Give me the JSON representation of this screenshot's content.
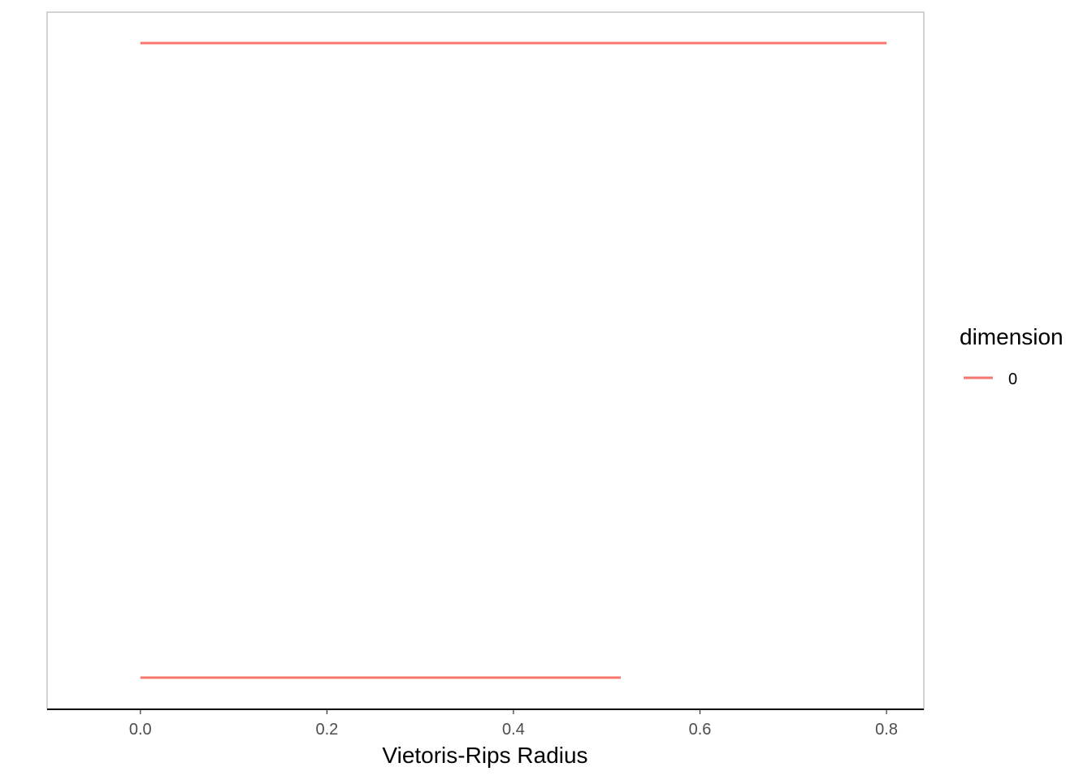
{
  "chart_data": {
    "type": "barcode",
    "title": "",
    "xlabel": "Vietoris-Rips Radius",
    "ylabel": "",
    "xlim": [
      -0.1,
      0.84
    ],
    "x_ticks": [
      0.0,
      0.2,
      0.4,
      0.6,
      0.8
    ],
    "x_tick_labels": [
      "0.0",
      "0.2",
      "0.4",
      "0.6",
      "0.8"
    ],
    "grid": false,
    "legend": {
      "title": "dimension",
      "position": "right",
      "entries": [
        {
          "label": "0",
          "color": "#F8766D"
        }
      ]
    },
    "series": [
      {
        "name": "0",
        "color": "#F8766D",
        "bars": [
          {
            "birth": 0.0,
            "death": 0.8
          },
          {
            "birth": 0.0,
            "death": 0.515
          }
        ]
      }
    ]
  }
}
